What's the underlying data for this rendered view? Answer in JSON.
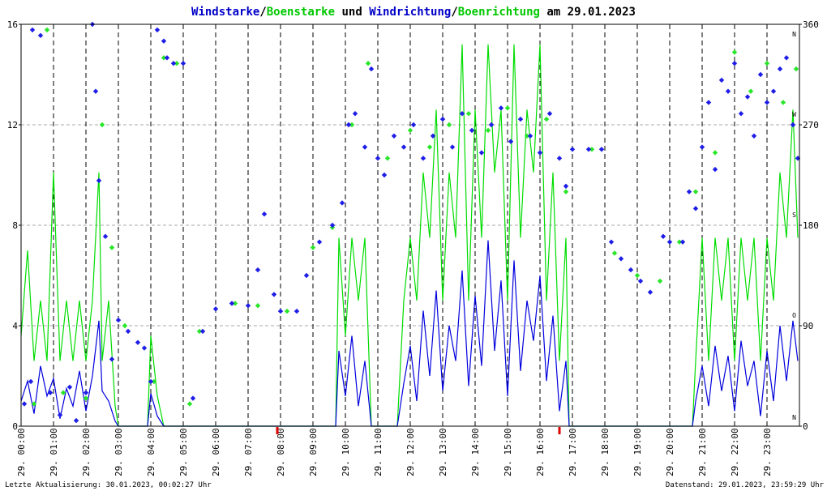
{
  "title": {
    "parts": [
      {
        "text": "Windstarke",
        "color": "#0000c8"
      },
      {
        "text": "/",
        "color": "#000000"
      },
      {
        "text": "Boenstarke",
        "color": "#00c800"
      },
      {
        "text": " und ",
        "color": "#000000"
      },
      {
        "text": "Windrichtung",
        "color": "#0000c8"
      },
      {
        "text": "/",
        "color": "#000000"
      },
      {
        "text": "Boenrichtung",
        "color": "#00c800"
      },
      {
        "text": " am 29.01.2023",
        "color": "#000000"
      }
    ]
  },
  "footer": {
    "left": "Letzte Aktualisierung: 30.01.2023, 00:02:27 Uhr",
    "right": "Datenstand: 29.01.2023, 23:59:29 Uhr"
  },
  "colors": {
    "wind": "#0000dd",
    "gust": "#00dd00",
    "direction": "#1e1ee6",
    "gust_direction": "#28e628",
    "grid": "#aaaaaa",
    "hour_line": "#000000",
    "marker": "#dd0000"
  },
  "chart_data": {
    "type": "line",
    "x_unit": "hour of day",
    "xlim": [
      0,
      24
    ],
    "ylim_left": [
      0,
      16
    ],
    "yticks_left": [
      0,
      4,
      8,
      12,
      16
    ],
    "ylim_right": [
      0,
      360
    ],
    "yticks_right": [
      0,
      90,
      180,
      270,
      360
    ],
    "compass_labels": [
      {
        "deg": 0,
        "label": "N"
      },
      {
        "deg": 90,
        "label": "O"
      },
      {
        "deg": 180,
        "label": "S"
      },
      {
        "deg": 270,
        "label": "W"
      },
      {
        "deg": 360,
        "label": "N"
      }
    ],
    "x_tick_labels": [
      "29. 00:00",
      "29. 01:00",
      "29. 02:00",
      "29. 03:00",
      "29. 04:00",
      "29. 05:00",
      "29. 06:00",
      "29. 07:00",
      "29. 08:00",
      "29. 09:00",
      "29. 10:00",
      "29. 11:00",
      "29. 12:00",
      "29. 13:00",
      "29. 14:00",
      "29. 15:00",
      "29. 16:00",
      "29. 17:00",
      "29. 18:00",
      "29. 19:00",
      "29. 20:00",
      "29. 21:00",
      "29. 22:00",
      "29. 23:00"
    ],
    "red_markers_hours": [
      7.9,
      16.6
    ],
    "horizontal_grid": true,
    "vertical_grid": "dashed black at each hour",
    "series": [
      {
        "name": "Windstarke",
        "kind": "line",
        "axis": "left",
        "points": [
          [
            0,
            1.0
          ],
          [
            0.2,
            1.8
          ],
          [
            0.4,
            0.5
          ],
          [
            0.6,
            2.4
          ],
          [
            0.8,
            1.2
          ],
          [
            1.0,
            1.9
          ],
          [
            1.2,
            0.3
          ],
          [
            1.4,
            1.5
          ],
          [
            1.6,
            0.8
          ],
          [
            1.8,
            2.2
          ],
          [
            2.0,
            0.6
          ],
          [
            2.2,
            2.0
          ],
          [
            2.4,
            4.2
          ],
          [
            2.5,
            1.4
          ],
          [
            2.7,
            1.0
          ],
          [
            2.9,
            0.2
          ],
          [
            3.0,
            0
          ],
          [
            3.9,
            0
          ],
          [
            4.0,
            1.3
          ],
          [
            4.2,
            0.4
          ],
          [
            4.4,
            0
          ],
          [
            9.7,
            0
          ],
          [
            9.8,
            3.0
          ],
          [
            10.0,
            1.2
          ],
          [
            10.2,
            3.6
          ],
          [
            10.4,
            0.8
          ],
          [
            10.6,
            2.6
          ],
          [
            10.8,
            0
          ],
          [
            11.6,
            0
          ],
          [
            11.8,
            1.7
          ],
          [
            12.0,
            3.2
          ],
          [
            12.2,
            1.0
          ],
          [
            12.4,
            4.6
          ],
          [
            12.6,
            2.0
          ],
          [
            12.8,
            5.4
          ],
          [
            13.0,
            1.4
          ],
          [
            13.2,
            4.0
          ],
          [
            13.4,
            2.6
          ],
          [
            13.6,
            6.2
          ],
          [
            13.8,
            1.6
          ],
          [
            14.0,
            5.2
          ],
          [
            14.2,
            2.4
          ],
          [
            14.4,
            7.4
          ],
          [
            14.6,
            3.0
          ],
          [
            14.8,
            5.8
          ],
          [
            15.0,
            1.2
          ],
          [
            15.2,
            6.6
          ],
          [
            15.4,
            2.2
          ],
          [
            15.6,
            5.0
          ],
          [
            15.8,
            3.4
          ],
          [
            16.0,
            6.0
          ],
          [
            16.2,
            1.8
          ],
          [
            16.4,
            4.4
          ],
          [
            16.6,
            0.6
          ],
          [
            16.8,
            2.6
          ],
          [
            16.9,
            0
          ],
          [
            20.7,
            0
          ],
          [
            20.8,
            1.0
          ],
          [
            21.0,
            2.4
          ],
          [
            21.2,
            0.8
          ],
          [
            21.4,
            3.2
          ],
          [
            21.6,
            1.4
          ],
          [
            21.8,
            2.8
          ],
          [
            22.0,
            0.6
          ],
          [
            22.2,
            3.4
          ],
          [
            22.4,
            1.6
          ],
          [
            22.6,
            2.6
          ],
          [
            22.8,
            0.4
          ],
          [
            23.0,
            3.0
          ],
          [
            23.2,
            1.0
          ],
          [
            23.4,
            4.0
          ],
          [
            23.6,
            1.8
          ],
          [
            23.8,
            4.2
          ],
          [
            23.95,
            2.6
          ]
        ]
      },
      {
        "name": "Boenstarke",
        "kind": "line",
        "axis": "left",
        "points": [
          [
            0,
            3.6
          ],
          [
            0.2,
            7.0
          ],
          [
            0.4,
            2.6
          ],
          [
            0.6,
            5.0
          ],
          [
            0.8,
            2.6
          ],
          [
            1.0,
            10.1
          ],
          [
            1.2,
            2.6
          ],
          [
            1.4,
            5.0
          ],
          [
            1.6,
            2.6
          ],
          [
            1.8,
            5.0
          ],
          [
            2.0,
            2.6
          ],
          [
            2.2,
            5.0
          ],
          [
            2.4,
            10.1
          ],
          [
            2.5,
            2.6
          ],
          [
            2.7,
            5.0
          ],
          [
            2.9,
            0.8
          ],
          [
            3.0,
            0
          ],
          [
            3.9,
            0
          ],
          [
            4.0,
            3.6
          ],
          [
            4.2,
            1.2
          ],
          [
            4.4,
            0
          ],
          [
            9.7,
            0
          ],
          [
            9.8,
            7.5
          ],
          [
            10.0,
            3.6
          ],
          [
            10.2,
            7.5
          ],
          [
            10.4,
            5.0
          ],
          [
            10.6,
            7.5
          ],
          [
            10.8,
            0
          ],
          [
            11.6,
            0
          ],
          [
            11.8,
            5.0
          ],
          [
            12.0,
            7.5
          ],
          [
            12.2,
            5.0
          ],
          [
            12.4,
            10.1
          ],
          [
            12.6,
            7.5
          ],
          [
            12.8,
            12.6
          ],
          [
            13.0,
            5.0
          ],
          [
            13.2,
            10.1
          ],
          [
            13.4,
            7.5
          ],
          [
            13.6,
            15.2
          ],
          [
            13.8,
            5.0
          ],
          [
            14.0,
            12.6
          ],
          [
            14.2,
            7.5
          ],
          [
            14.4,
            15.2
          ],
          [
            14.6,
            10.1
          ],
          [
            14.8,
            12.6
          ],
          [
            15.0,
            5.0
          ],
          [
            15.2,
            15.2
          ],
          [
            15.4,
            7.5
          ],
          [
            15.6,
            12.6
          ],
          [
            15.8,
            10.1
          ],
          [
            16.0,
            15.2
          ],
          [
            16.2,
            5.0
          ],
          [
            16.4,
            10.1
          ],
          [
            16.6,
            2.6
          ],
          [
            16.8,
            7.5
          ],
          [
            16.9,
            0
          ],
          [
            20.7,
            0
          ],
          [
            20.8,
            2.6
          ],
          [
            21.0,
            7.5
          ],
          [
            21.2,
            2.6
          ],
          [
            21.4,
            7.5
          ],
          [
            21.6,
            5.0
          ],
          [
            21.8,
            7.5
          ],
          [
            22.0,
            2.6
          ],
          [
            22.2,
            7.5
          ],
          [
            22.4,
            5.0
          ],
          [
            22.6,
            7.5
          ],
          [
            22.8,
            2.6
          ],
          [
            23.0,
            7.5
          ],
          [
            23.2,
            5.0
          ],
          [
            23.4,
            10.1
          ],
          [
            23.6,
            7.5
          ],
          [
            23.8,
            12.6
          ],
          [
            23.95,
            7.5
          ]
        ]
      },
      {
        "name": "Windrichtung",
        "kind": "scatter",
        "axis": "right",
        "points": [
          [
            0.1,
            20
          ],
          [
            0.3,
            40
          ],
          [
            0.35,
            355
          ],
          [
            0.6,
            350
          ],
          [
            0.9,
            30
          ],
          [
            1.2,
            10
          ],
          [
            1.5,
            35
          ],
          [
            1.7,
            5
          ],
          [
            2.0,
            30
          ],
          [
            2.2,
            360
          ],
          [
            2.3,
            300
          ],
          [
            2.4,
            220
          ],
          [
            2.6,
            170
          ],
          [
            2.8,
            60
          ],
          [
            3.0,
            95
          ],
          [
            3.3,
            85
          ],
          [
            3.6,
            75
          ],
          [
            3.8,
            70
          ],
          [
            4.0,
            40
          ],
          [
            4.2,
            355
          ],
          [
            4.4,
            345
          ],
          [
            4.5,
            330
          ],
          [
            4.7,
            325
          ],
          [
            5.0,
            325
          ],
          [
            5.3,
            25
          ],
          [
            5.6,
            85
          ],
          [
            6.0,
            105
          ],
          [
            6.5,
            110
          ],
          [
            7.0,
            108
          ],
          [
            7.3,
            140
          ],
          [
            7.5,
            190
          ],
          [
            7.8,
            118
          ],
          [
            8.0,
            103
          ],
          [
            8.5,
            103
          ],
          [
            8.8,
            135
          ],
          [
            9.2,
            165
          ],
          [
            9.6,
            180
          ],
          [
            9.9,
            200
          ],
          [
            10.1,
            270
          ],
          [
            10.3,
            280
          ],
          [
            10.6,
            250
          ],
          [
            10.8,
            320
          ],
          [
            11.0,
            240
          ],
          [
            11.2,
            225
          ],
          [
            11.5,
            260
          ],
          [
            11.8,
            250
          ],
          [
            12.1,
            270
          ],
          [
            12.4,
            240
          ],
          [
            12.7,
            260
          ],
          [
            13.0,
            275
          ],
          [
            13.3,
            250
          ],
          [
            13.6,
            280
          ],
          [
            13.9,
            265
          ],
          [
            14.2,
            245
          ],
          [
            14.5,
            270
          ],
          [
            14.8,
            285
          ],
          [
            15.1,
            255
          ],
          [
            15.4,
            275
          ],
          [
            15.7,
            260
          ],
          [
            16.0,
            245
          ],
          [
            16.3,
            280
          ],
          [
            16.6,
            240
          ],
          [
            16.8,
            215
          ],
          [
            17.0,
            248
          ],
          [
            17.5,
            248
          ],
          [
            17.9,
            248
          ],
          [
            18.2,
            165
          ],
          [
            18.5,
            150
          ],
          [
            18.8,
            140
          ],
          [
            19.1,
            130
          ],
          [
            19.4,
            120
          ],
          [
            19.8,
            170
          ],
          [
            20.0,
            165
          ],
          [
            20.4,
            165
          ],
          [
            20.6,
            210
          ],
          [
            20.8,
            195
          ],
          [
            21.0,
            250
          ],
          [
            21.2,
            290
          ],
          [
            21.4,
            230
          ],
          [
            21.6,
            310
          ],
          [
            21.8,
            300
          ],
          [
            22.0,
            325
          ],
          [
            22.2,
            280
          ],
          [
            22.4,
            295
          ],
          [
            22.6,
            260
          ],
          [
            22.8,
            315
          ],
          [
            23.0,
            290
          ],
          [
            23.2,
            300
          ],
          [
            23.4,
            320
          ],
          [
            23.6,
            330
          ],
          [
            23.8,
            270
          ],
          [
            23.95,
            240
          ]
        ]
      },
      {
        "name": "Boenrichtung",
        "kind": "scatter",
        "axis": "right",
        "points": [
          [
            0.4,
            20
          ],
          [
            0.8,
            355
          ],
          [
            1.3,
            30
          ],
          [
            2.0,
            25
          ],
          [
            2.5,
            270
          ],
          [
            2.8,
            160
          ],
          [
            3.2,
            90
          ],
          [
            4.1,
            40
          ],
          [
            4.4,
            330
          ],
          [
            4.8,
            325
          ],
          [
            5.2,
            20
          ],
          [
            5.5,
            85
          ],
          [
            6.6,
            110
          ],
          [
            7.3,
            108
          ],
          [
            8.2,
            103
          ],
          [
            9.0,
            160
          ],
          [
            9.6,
            178
          ],
          [
            10.2,
            270
          ],
          [
            10.7,
            325
          ],
          [
            11.3,
            240
          ],
          [
            12.0,
            265
          ],
          [
            12.6,
            250
          ],
          [
            13.2,
            270
          ],
          [
            13.8,
            280
          ],
          [
            14.4,
            265
          ],
          [
            15.0,
            285
          ],
          [
            15.6,
            260
          ],
          [
            16.2,
            275
          ],
          [
            16.8,
            210
          ],
          [
            17.6,
            248
          ],
          [
            18.3,
            155
          ],
          [
            19.0,
            135
          ],
          [
            19.7,
            130
          ],
          [
            20.3,
            165
          ],
          [
            20.8,
            210
          ],
          [
            21.4,
            245
          ],
          [
            22.0,
            335
          ],
          [
            22.5,
            300
          ],
          [
            23.0,
            325
          ],
          [
            23.5,
            290
          ],
          [
            23.9,
            320
          ]
        ]
      }
    ]
  }
}
